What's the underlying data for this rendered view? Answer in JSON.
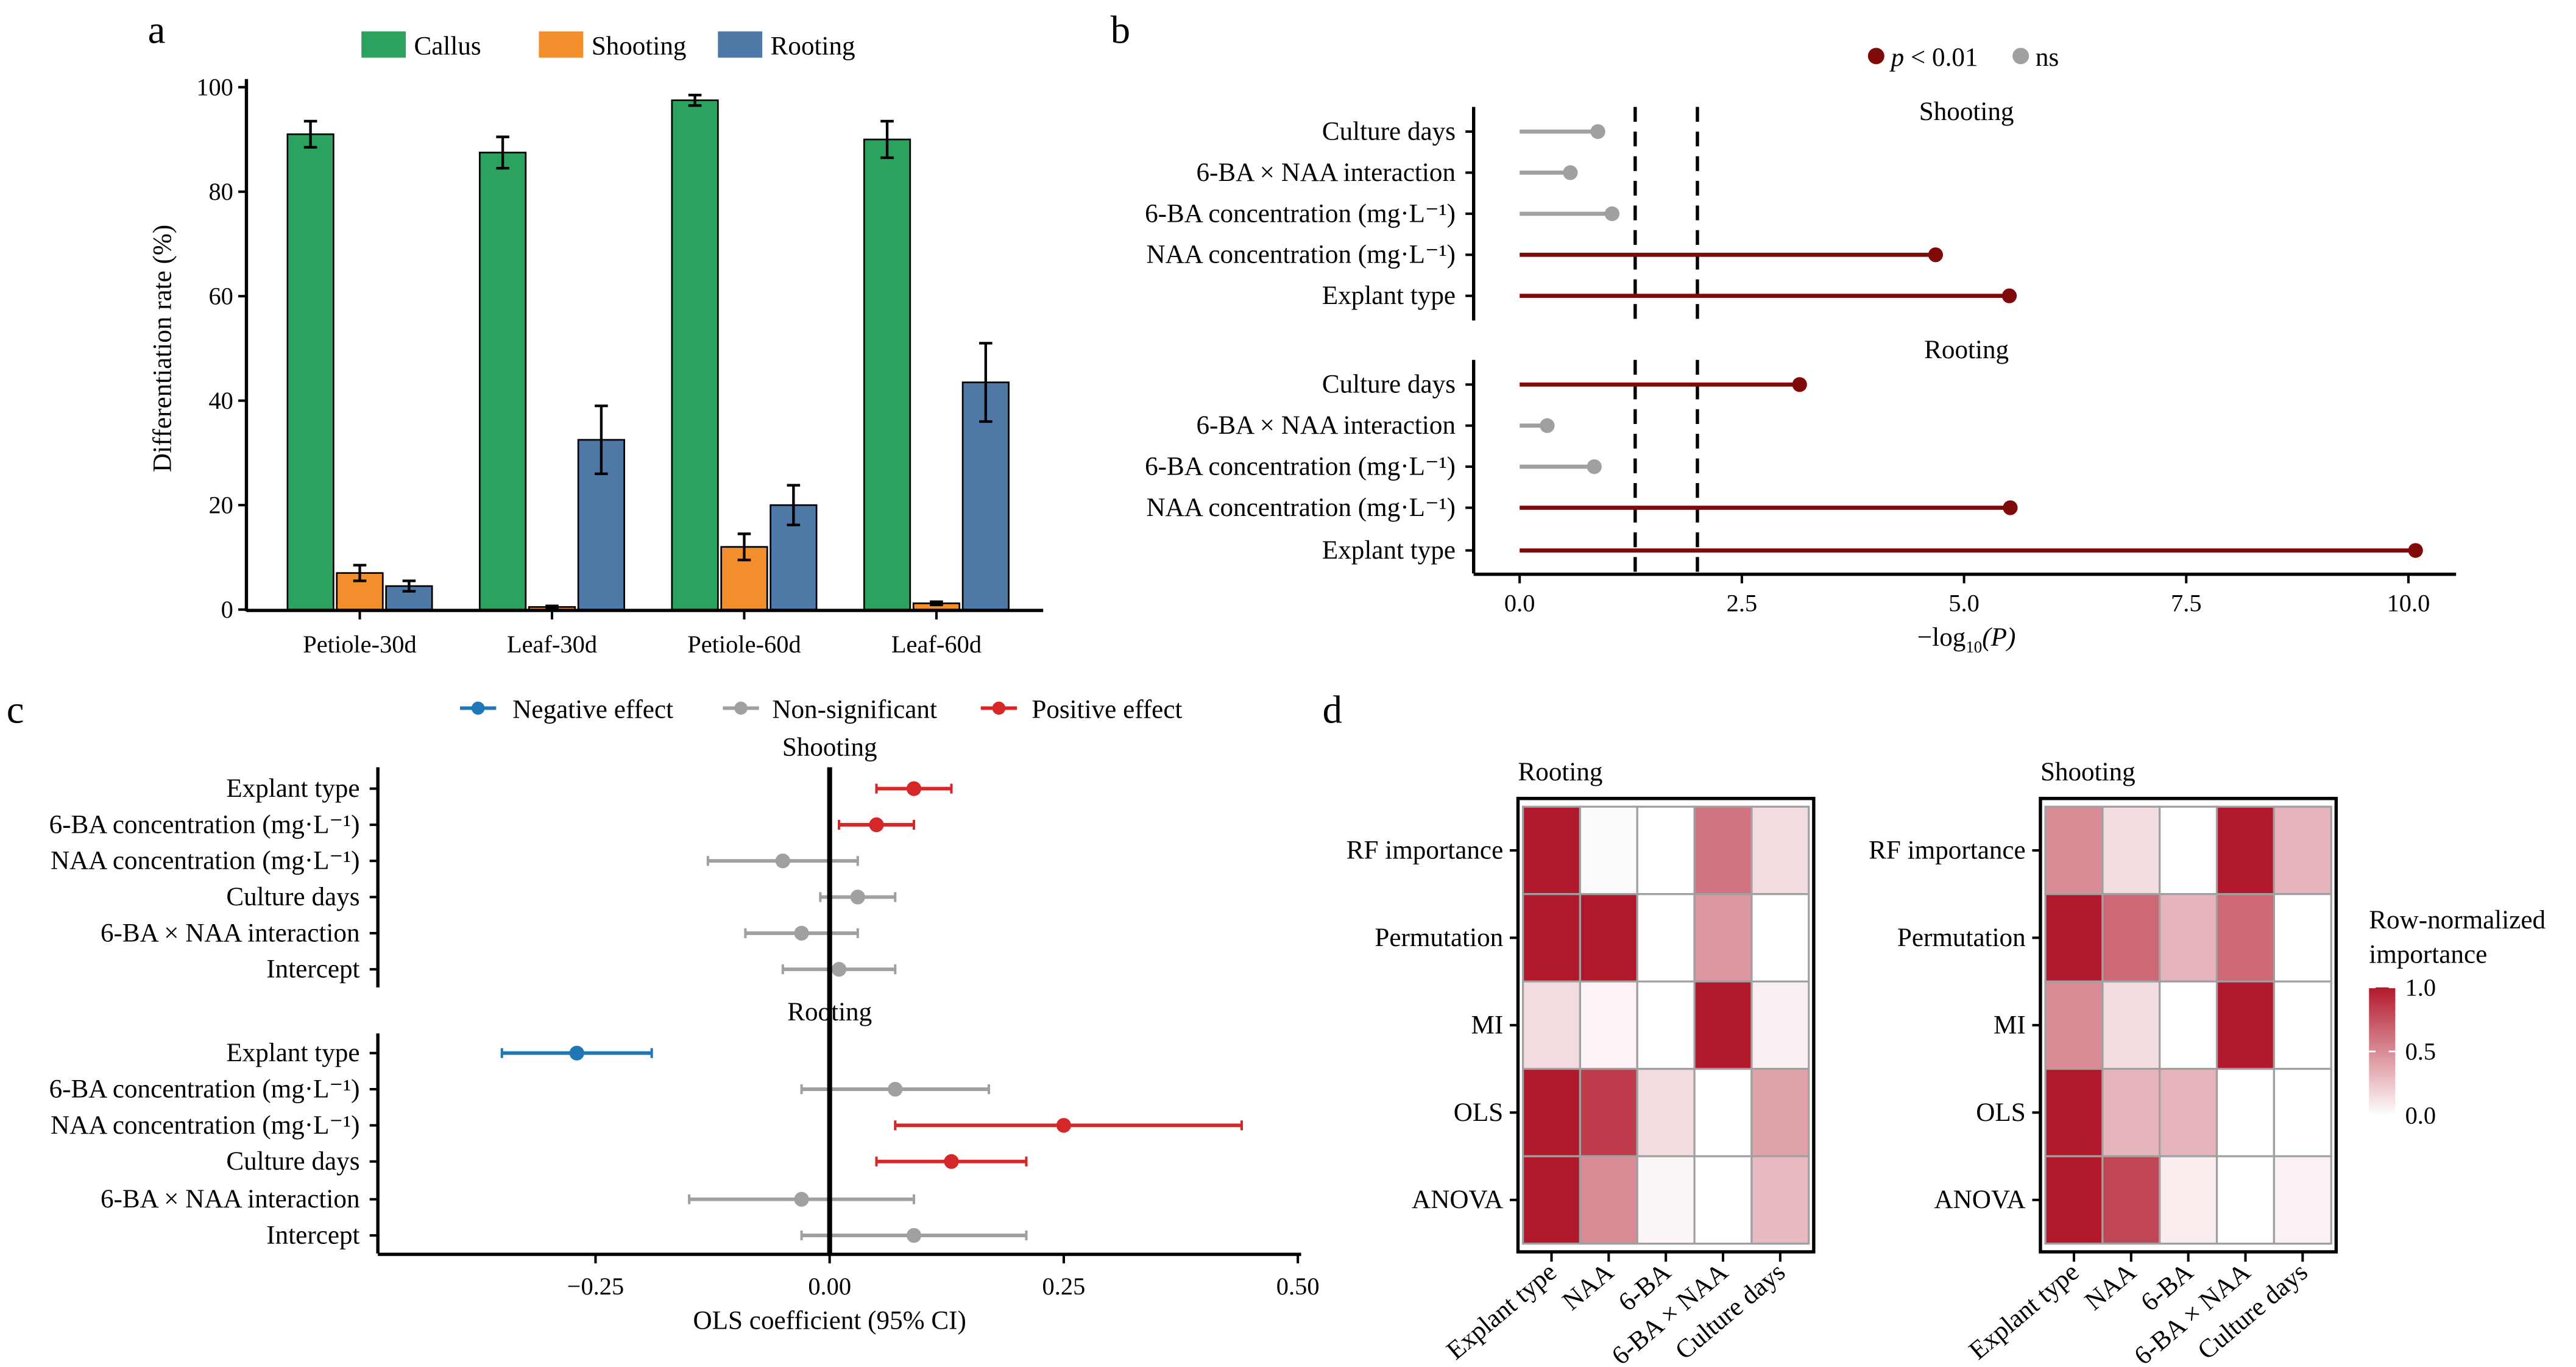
{
  "chart_data": [
    {
      "panel": "a",
      "type": "bar",
      "ylabel": "Differentiation rate (%)",
      "ylim": [
        0,
        100
      ],
      "yticks": [
        0,
        20,
        40,
        60,
        80,
        100
      ],
      "categories": [
        "Petiole-30d",
        "Leaf-30d",
        "Petiole-60d",
        "Leaf-60d"
      ],
      "legend_position": "top",
      "series": [
        {
          "name": "Callus",
          "color": "#2CA25F",
          "values": [
            91,
            87.5,
            97.5,
            90
          ],
          "errors": [
            2.5,
            3,
            1,
            3.5
          ]
        },
        {
          "name": "Shooting",
          "color": "#F28E2B",
          "values": [
            7,
            0.5,
            12,
            1.2
          ],
          "errors": [
            1.5,
            0.2,
            2.5,
            0.3
          ]
        },
        {
          "name": "Rooting",
          "color": "#4E79A7",
          "values": [
            4.5,
            32.5,
            20,
            43.5
          ],
          "errors": [
            1,
            6.5,
            3.8,
            7.5
          ]
        }
      ]
    },
    {
      "panel": "b",
      "type": "lollipop",
      "xlabel_prefix": "−log",
      "xlabel_sub": "10",
      "xlabel_suffix": "(P)",
      "xlim": [
        0,
        10.5
      ],
      "xticks": [
        "0.0",
        "2.5",
        "5.0",
        "7.5",
        "10.0"
      ],
      "xtick_values": [
        0,
        2.5,
        5,
        7.5,
        10
      ],
      "thresholds": [
        1.3,
        2.0
      ],
      "legend": [
        {
          "label_italic": "p",
          "label": " < 0.01",
          "color": "#7F0A0A"
        },
        {
          "label": "ns",
          "color": "#A0A0A0"
        }
      ],
      "facets": [
        {
          "name": "Shooting",
          "terms": [
            "Culture days",
            "6-BA × NAA interaction",
            "6-BA concentration (mg·L⁻¹)",
            "NAA concentration (mg·L⁻¹)",
            "Explant type"
          ],
          "values": [
            0.88,
            0.57,
            1.04,
            4.68,
            5.51
          ],
          "significant": [
            false,
            false,
            false,
            true,
            true
          ]
        },
        {
          "name": "Rooting",
          "terms": [
            "Culture days",
            "6-BA × NAA interaction",
            "6-BA concentration (mg·L⁻¹)",
            "NAA concentration (mg·L⁻¹)",
            "Explant type"
          ],
          "values": [
            3.15,
            0.31,
            0.84,
            5.52,
            10.08
          ],
          "significant": [
            true,
            false,
            false,
            true,
            true
          ]
        }
      ]
    },
    {
      "panel": "c",
      "type": "forest",
      "xlabel": "OLS coefficient (95% CI)",
      "xlim": [
        -0.48,
        0.5
      ],
      "xticks": [
        "−0.25",
        "0.00",
        "0.25",
        "0.50"
      ],
      "xtick_values": [
        -0.25,
        0,
        0.25,
        0.5
      ],
      "legend": [
        {
          "label": "Negative effect",
          "color": "#1F77B4"
        },
        {
          "label": "Non-significant",
          "color": "#A0A0A0"
        },
        {
          "label": "Positive effect",
          "color": "#D62728"
        }
      ],
      "facets": [
        {
          "name": "Shooting",
          "terms": [
            "Explant type",
            "6-BA concentration (mg·L⁻¹)",
            "NAA concentration (mg·L⁻¹)",
            "Culture days",
            "6-BA × NAA interaction",
            "Intercept"
          ],
          "estimate": [
            0.09,
            0.05,
            -0.05,
            0.03,
            -0.03,
            0.01
          ],
          "lower": [
            0.05,
            0.01,
            -0.13,
            -0.01,
            -0.09,
            -0.05
          ],
          "upper": [
            0.13,
            0.09,
            0.03,
            0.07,
            0.03,
            0.07
          ],
          "effect": [
            2,
            2,
            1,
            1,
            1,
            1
          ]
        },
        {
          "name": "Rooting",
          "terms": [
            "Explant type",
            "6-BA concentration (mg·L⁻¹)",
            "NAA concentration (mg·L⁻¹)",
            "Culture days",
            "6-BA × NAA interaction",
            "Intercept"
          ],
          "estimate": [
            -0.27,
            0.07,
            0.25,
            0.13,
            -0.03,
            0.09
          ],
          "lower": [
            -0.35,
            -0.03,
            0.07,
            0.05,
            -0.15,
            -0.03
          ],
          "upper": [
            -0.19,
            0.17,
            0.44,
            0.21,
            0.09,
            0.21
          ],
          "effect": [
            0,
            1,
            2,
            2,
            1,
            1
          ]
        }
      ]
    },
    {
      "panel": "d",
      "type": "heatmap",
      "rows": [
        "RF importance",
        "Permutation",
        "MI",
        "OLS",
        "ANOVA"
      ],
      "columns": [
        "Explant type",
        "NAA",
        "6-BA",
        "6-BA × NAA",
        "Culture days"
      ],
      "colorbar_title": [
        "Row-normalized",
        "importance"
      ],
      "colorbar_ticks": [
        "1.0",
        "0.5",
        "0.0"
      ],
      "color_low": "#FFFFFF",
      "color_high": "#B2182B",
      "facets": [
        {
          "name": "Rooting",
          "values": [
            [
              1,
              0.02,
              0,
              0.6,
              0.15
            ],
            [
              1,
              1,
              0,
              0.45,
              0
            ],
            [
              0.15,
              0.05,
              0,
              1,
              0.07
            ],
            [
              1,
              0.85,
              0.15,
              0,
              0.4
            ],
            [
              1,
              0.5,
              0.04,
              0,
              0.3
            ]
          ]
        },
        {
          "name": "Shooting",
          "values": [
            [
              0.5,
              0.15,
              0,
              1,
              0.32
            ],
            [
              1,
              0.65,
              0.32,
              0.65,
              0
            ],
            [
              0.5,
              0.15,
              0,
              1,
              0
            ],
            [
              1,
              0.32,
              0.32,
              0,
              0
            ],
            [
              1,
              0.8,
              0.08,
              0,
              0.06
            ]
          ]
        }
      ]
    }
  ],
  "panel_labels": [
    "a",
    "b",
    "c",
    "d"
  ]
}
